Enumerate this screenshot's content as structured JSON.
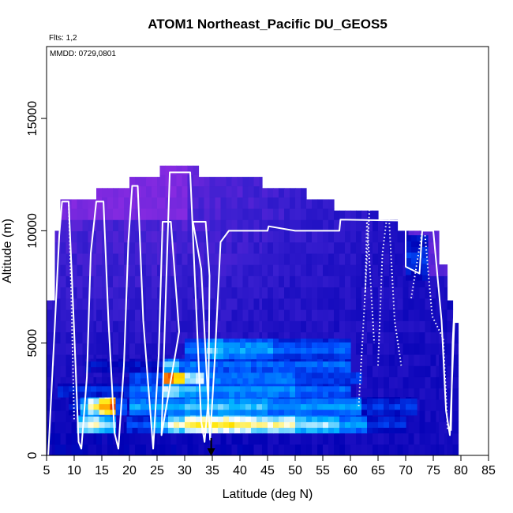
{
  "chart_data": {
    "type": "heatmap",
    "title": "ATOM1 Northeast_Pacific DU_GEOS5",
    "flights_note": "Flts: 1,2",
    "date_note": "MMDD: 0729,0801",
    "xlabel": "Latitude (deg N)",
    "ylabel": "Altitude (m)",
    "xlim": [
      5,
      85
    ],
    "ylim": [
      0,
      18200
    ],
    "xticks": [
      5,
      10,
      15,
      20,
      25,
      30,
      35,
      40,
      45,
      50,
      55,
      60,
      65,
      70,
      75,
      80,
      85
    ],
    "yticks": [
      0,
      5000,
      10000,
      15000
    ],
    "grid": false,
    "colorscale": [
      "#8a2be2",
      "#3a1fd0",
      "#0000b4",
      "#0050ff",
      "#00b4ff",
      "#ffffff",
      "#ffe600",
      "#ff8c00",
      "#d20000",
      "#780000"
    ],
    "colors": {
      "flight_track": "#ffffff",
      "marker": "#000000"
    },
    "model_columns": [
      {
        "x0": 5.0,
        "x1": 6.5,
        "top": 6900
      },
      {
        "x0": 6.5,
        "x1": 7.5,
        "top": 10000
      },
      {
        "x0": 7.5,
        "x1": 14.0,
        "top": 11400
      },
      {
        "x0": 14.0,
        "x1": 20.0,
        "top": 11900
      },
      {
        "x0": 20.0,
        "x1": 25.5,
        "top": 12400
      },
      {
        "x0": 25.5,
        "x1": 32.5,
        "top": 12900
      },
      {
        "x0": 32.5,
        "x1": 44.0,
        "top": 12400
      },
      {
        "x0": 44.0,
        "x1": 52.0,
        "top": 11900
      },
      {
        "x0": 52.0,
        "x1": 57.0,
        "top": 11400
      },
      {
        "x0": 57.0,
        "x1": 65.0,
        "top": 10900
      },
      {
        "x0": 65.0,
        "x1": 68.5,
        "top": 10500
      },
      {
        "x0": 68.5,
        "x1": 76.0,
        "top": 10000
      },
      {
        "x0": 76.0,
        "x1": 77.5,
        "top": 8500
      },
      {
        "x0": 77.5,
        "x1": 78.5,
        "top": 6900
      },
      {
        "x0": 78.5,
        "x1": 79.5,
        "top": 5900
      }
    ],
    "dust_plumes": [
      {
        "x0": 10.5,
        "x1": 12.5,
        "y0": 1800,
        "y1": 2600,
        "level": 0.48
      },
      {
        "x0": 10.5,
        "x1": 12.5,
        "y0": 1000,
        "y1": 1800,
        "level": 0.55
      },
      {
        "x0": 12.5,
        "x1": 14.5,
        "y0": 1800,
        "y1": 2600,
        "level": 0.62
      },
      {
        "x0": 12.5,
        "x1": 14.5,
        "y0": 1000,
        "y1": 1800,
        "level": 0.6
      },
      {
        "x0": 14.5,
        "x1": 16.5,
        "y0": 1800,
        "y1": 2600,
        "level": 0.76
      },
      {
        "x0": 14.5,
        "x1": 16.5,
        "y0": 1000,
        "y1": 1800,
        "level": 0.52
      },
      {
        "x0": 16.5,
        "x1": 17.5,
        "y0": 1800,
        "y1": 2600,
        "level": 0.88
      },
      {
        "x0": 16.5,
        "x1": 17.5,
        "y0": 1000,
        "y1": 1800,
        "level": 0.5
      },
      {
        "x0": 17.5,
        "x1": 19.5,
        "y0": 1800,
        "y1": 2600,
        "level": 0.36
      },
      {
        "x0": 9.0,
        "x1": 11.0,
        "y0": 1800,
        "y1": 2600,
        "level": 0.28
      },
      {
        "x0": 19.5,
        "x1": 24.0,
        "y0": 1000,
        "y1": 1800,
        "level": 0.32
      },
      {
        "x0": 24.0,
        "x1": 27.0,
        "y0": 1000,
        "y1": 1800,
        "level": 0.48
      },
      {
        "x0": 27.0,
        "x1": 30.0,
        "y0": 1000,
        "y1": 1800,
        "level": 0.58
      },
      {
        "x0": 30.0,
        "x1": 42.0,
        "y0": 1000,
        "y1": 1800,
        "level": 0.66
      },
      {
        "x0": 42.0,
        "x1": 50.0,
        "y0": 1000,
        "y1": 1800,
        "level": 0.6
      },
      {
        "x0": 50.0,
        "x1": 58.0,
        "y0": 1000,
        "y1": 1800,
        "level": 0.52
      },
      {
        "x0": 58.0,
        "x1": 63.0,
        "y0": 1000,
        "y1": 1800,
        "level": 0.42
      },
      {
        "x0": 63.0,
        "x1": 70.0,
        "y0": 1000,
        "y1": 1800,
        "level": 0.3
      },
      {
        "x0": 20.0,
        "x1": 30.0,
        "y0": 1800,
        "y1": 2600,
        "level": 0.44
      },
      {
        "x0": 30.0,
        "x1": 45.0,
        "y0": 1800,
        "y1": 2600,
        "level": 0.48
      },
      {
        "x0": 45.0,
        "x1": 62.0,
        "y0": 1800,
        "y1": 2600,
        "level": 0.42
      },
      {
        "x0": 62.0,
        "x1": 72.0,
        "y0": 1800,
        "y1": 2600,
        "level": 0.3
      },
      {
        "x0": 7.0,
        "x1": 20.0,
        "y0": 2600,
        "y1": 3200,
        "level": 0.3
      },
      {
        "x0": 20.0,
        "x1": 26.0,
        "y0": 2600,
        "y1": 3200,
        "level": 0.4
      },
      {
        "x0": 26.0,
        "x1": 29.0,
        "y0": 2600,
        "y1": 3200,
        "level": 0.56
      },
      {
        "x0": 29.0,
        "x1": 34.0,
        "y0": 2600,
        "y1": 3200,
        "level": 0.48
      },
      {
        "x0": 34.0,
        "x1": 50.0,
        "y0": 2600,
        "y1": 3200,
        "level": 0.44
      },
      {
        "x0": 50.0,
        "x1": 60.0,
        "y0": 2600,
        "y1": 3200,
        "level": 0.38
      },
      {
        "x0": 20.0,
        "x1": 26.0,
        "y0": 3200,
        "y1": 3700,
        "level": 0.36
      },
      {
        "x0": 26.0,
        "x1": 28.0,
        "y0": 3200,
        "y1": 3700,
        "level": 0.92
      },
      {
        "x0": 28.0,
        "x1": 30.0,
        "y0": 3200,
        "y1": 3700,
        "level": 0.8
      },
      {
        "x0": 30.0,
        "x1": 33.5,
        "y0": 3200,
        "y1": 3700,
        "level": 0.6
      },
      {
        "x0": 33.5,
        "x1": 50.0,
        "y0": 3200,
        "y1": 3700,
        "level": 0.42
      },
      {
        "x0": 50.0,
        "x1": 62.0,
        "y0": 3200,
        "y1": 3700,
        "level": 0.34
      },
      {
        "x0": 26.0,
        "x1": 29.0,
        "y0": 3700,
        "y1": 4300,
        "level": 0.5
      },
      {
        "x0": 29.0,
        "x1": 34.0,
        "y0": 3700,
        "y1": 4300,
        "level": 0.4
      },
      {
        "x0": 34.0,
        "x1": 60.0,
        "y0": 3700,
        "y1": 4300,
        "level": 0.38
      },
      {
        "x0": 12.0,
        "x1": 26.0,
        "y0": 3700,
        "y1": 4300,
        "level": 0.26
      },
      {
        "x0": 30.0,
        "x1": 34.0,
        "y0": 4300,
        "y1": 5200,
        "level": 0.38
      },
      {
        "x0": 34.0,
        "x1": 37.0,
        "y0": 4300,
        "y1": 5200,
        "level": 0.5
      },
      {
        "x0": 37.0,
        "x1": 46.0,
        "y0": 4300,
        "y1": 5200,
        "level": 0.44
      },
      {
        "x0": 46.0,
        "x1": 60.0,
        "y0": 4300,
        "y1": 5200,
        "level": 0.36
      },
      {
        "x0": 70.0,
        "x1": 74.0,
        "y0": 7800,
        "y1": 9800,
        "level": 0.3
      }
    ],
    "flight_track": [
      [
        5.3,
        0
      ],
      [
        6.5,
        5800
      ],
      [
        7.3,
        9800
      ],
      [
        7.8,
        11300
      ],
      [
        9.0,
        11300
      ],
      [
        10.0,
        5500
      ],
      [
        10.8,
        600
      ],
      [
        11.3,
        300
      ],
      [
        12.3,
        3500
      ],
      [
        13.0,
        9000
      ],
      [
        14.0,
        11300
      ],
      [
        15.3,
        11300
      ],
      [
        16.2,
        6000
      ],
      [
        17.3,
        1000
      ],
      [
        18.0,
        300
      ],
      [
        19.0,
        4000
      ],
      [
        19.8,
        9500
      ],
      [
        20.5,
        12000
      ],
      [
        21.5,
        12000
      ],
      [
        22.5,
        6000
      ],
      [
        24.3,
        300
      ],
      [
        25.3,
        4500
      ],
      [
        26.0,
        10400
      ],
      [
        27.5,
        10400
      ],
      [
        29.0,
        5500
      ],
      [
        25.8,
        900
      ],
      [
        26.5,
        6500
      ],
      [
        27.3,
        12600
      ],
      [
        31.0,
        12600
      ],
      [
        32.0,
        7000
      ],
      [
        33.0,
        1500
      ],
      [
        33.6,
        600
      ],
      [
        34.3,
        2500
      ],
      [
        34.5,
        8000
      ],
      [
        33.8,
        10400
      ],
      [
        31.5,
        10400
      ],
      [
        33.0,
        8300
      ],
      [
        34.6,
        700
      ],
      [
        35.5,
        4500
      ],
      [
        36.5,
        9500
      ],
      [
        38.0,
        10000
      ],
      [
        45.0,
        10000
      ],
      [
        45.2,
        10200
      ],
      [
        50.0,
        10000
      ],
      [
        58.0,
        10000
      ],
      [
        58.2,
        10500
      ],
      [
        70.0,
        10450
      ],
      [
        70.0,
        8400
      ],
      [
        72.5,
        8100
      ],
      [
        73.0,
        10000
      ],
      [
        75.0,
        10000
      ],
      [
        76.5,
        6000
      ],
      [
        77.3,
        2000
      ],
      [
        78.0,
        900
      ],
      [
        78.5,
        4000
      ],
      [
        79.3,
        9200
      ],
      [
        78.5,
        5000
      ],
      [
        78.2,
        1100
      ]
    ],
    "dotted_segments": [
      [
        [
          9.0,
          11300
        ],
        [
          9.5,
          7000
        ],
        [
          10.0,
          1500
        ]
      ],
      [
        [
          61.5,
          2200
        ],
        [
          62.5,
          6500
        ],
        [
          63.5,
          11200
        ]
      ],
      [
        [
          62.7,
          7300
        ],
        [
          63.0,
          10500
        ],
        [
          64.3,
          5000
        ]
      ],
      [
        [
          65.0,
          4000
        ],
        [
          65.8,
          9000
        ],
        [
          66.5,
          10400
        ]
      ],
      [
        [
          67.0,
          10500
        ],
        [
          68.0,
          6000
        ],
        [
          69.2,
          4000
        ]
      ],
      [
        [
          71.0,
          7000
        ],
        [
          72.0,
          8500
        ],
        [
          73.0,
          10000
        ]
      ],
      [
        [
          73.5,
          9800
        ],
        [
          74.8,
          6200
        ],
        [
          76.8,
          5200
        ],
        [
          77.6,
          1100
        ]
      ]
    ],
    "marker": {
      "x": 34.8,
      "y": 0
    }
  }
}
